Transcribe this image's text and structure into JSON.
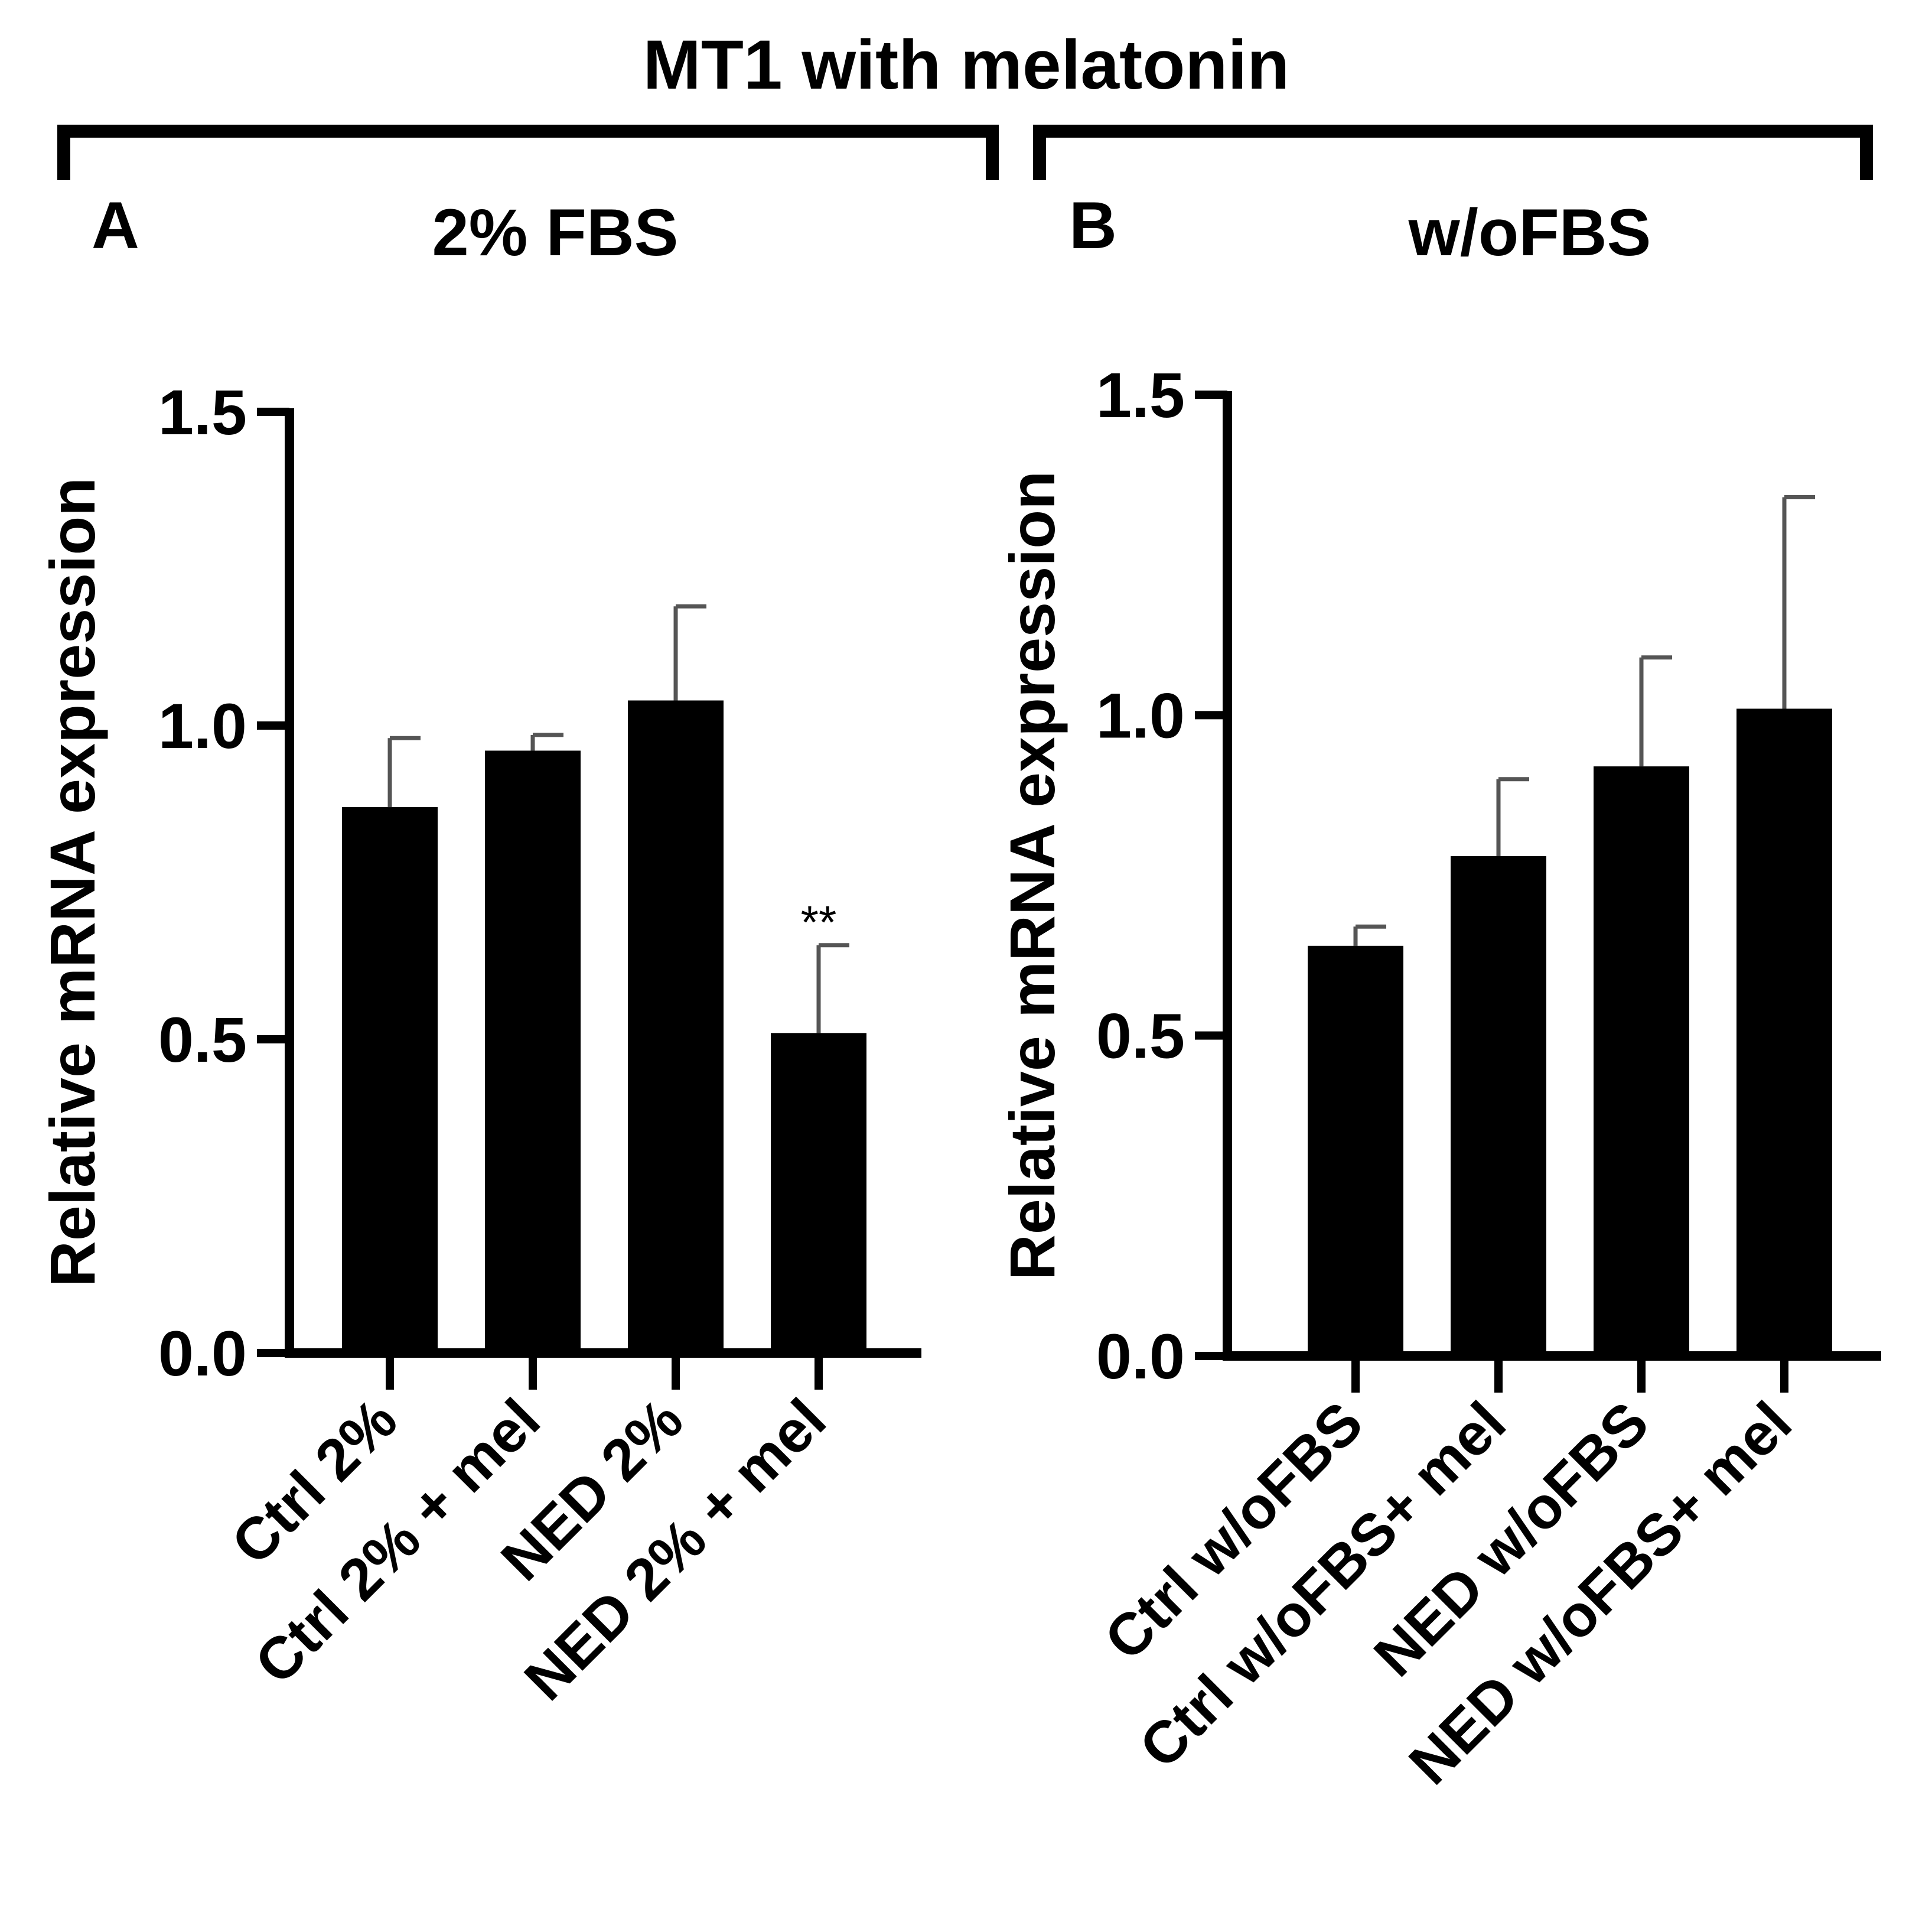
{
  "figure_title": "MT1 with melatonin",
  "colors": {
    "bar": "#000000",
    "axis": "#000000",
    "error": "#555555",
    "background": "#ffffff"
  },
  "chart_data": [
    {
      "panel": "A",
      "type": "bar",
      "title": "2% FBS",
      "xlabel": "",
      "ylabel": "Relative mRNA expression",
      "ylim": [
        0,
        1.5
      ],
      "yticks": [
        0.0,
        0.5,
        1.0,
        1.5
      ],
      "ytick_labels": [
        "0.0",
        "0.5",
        "1.0",
        "1.5"
      ],
      "categories": [
        "Ctrl 2%",
        "Ctrl 2% + mel",
        "NED 2%",
        "NED 2% + mel"
      ],
      "values": [
        0.87,
        0.96,
        1.04,
        0.51
      ],
      "errors": [
        0.11,
        0.025,
        0.15,
        0.14
      ],
      "annotations": [
        {
          "category_index": 3,
          "text": "**"
        }
      ]
    },
    {
      "panel": "B",
      "type": "bar",
      "title": "w/oFBS",
      "xlabel": "",
      "ylabel": "Relative mRNA expression",
      "ylim": [
        0,
        1.5
      ],
      "yticks": [
        0.0,
        0.5,
        1.0,
        1.5
      ],
      "ytick_labels": [
        "0.0",
        "0.5",
        "1.0",
        "1.5"
      ],
      "categories": [
        "Ctrl w/oFBS",
        "Ctrl w/oFBS+ mel",
        "NED w/oFBS",
        "NED w/oFBS+ mel"
      ],
      "values": [
        0.64,
        0.78,
        0.92,
        1.01
      ],
      "errors": [
        0.03,
        0.12,
        0.17,
        0.33
      ],
      "annotations": []
    }
  ]
}
